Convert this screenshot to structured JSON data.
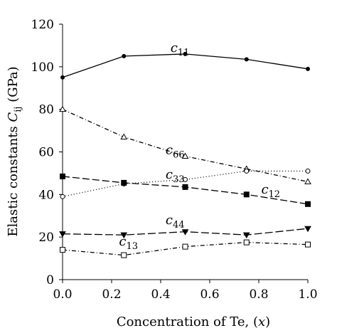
{
  "chart_data": {
    "type": "line",
    "title": "",
    "xlabel_prefix": "Concentration of Te, (",
    "xlabel_var": "x",
    "xlabel_suffix": ")",
    "ylabel_prefix": "Elastic constants ",
    "ylabel_var": "C",
    "ylabel_sub": "ij",
    "ylabel_suffix": " (GPa)",
    "xlim": [
      0.0,
      1.0
    ],
    "ylim": [
      0,
      120
    ],
    "x_ticks": [
      "0.0",
      "0.2",
      "0.4",
      "0.6",
      "0.8",
      "1.0"
    ],
    "y_ticks": [
      "0",
      "20",
      "40",
      "60",
      "80",
      "100",
      "120"
    ],
    "x_tick_values": [
      0.0,
      0.2,
      0.4,
      0.6,
      0.8,
      1.0
    ],
    "y_tick_values": [
      0,
      20,
      40,
      60,
      80,
      100,
      120
    ],
    "grid": false,
    "x": [
      0.0,
      0.25,
      0.5,
      0.75,
      1.0
    ],
    "series": [
      {
        "name": "c11",
        "label_main": "c",
        "label_sub": "11",
        "label_at": [
          0.44,
          107
        ],
        "values": [
          95,
          105,
          106,
          103.5,
          99
        ],
        "dash": "none",
        "marker": "dot"
      },
      {
        "name": "c66",
        "label_main": "c",
        "label_sub": "66",
        "label_at": [
          0.42,
          59
        ],
        "values": [
          80,
          67,
          58,
          52,
          46
        ],
        "dash": "6,3,1,3",
        "marker": "triangle-open"
      },
      {
        "name": "c33",
        "label_main": "c",
        "label_sub": "33",
        "label_at": [
          0.42,
          47.5
        ],
        "values": [
          39,
          45,
          47,
          51,
          51
        ],
        "dash": "1,3",
        "marker": "circle-open"
      },
      {
        "name": "c12",
        "label_main": "c",
        "label_sub": "12",
        "label_at": [
          0.81,
          40.5
        ],
        "values": [
          48.5,
          45.5,
          43.5,
          40,
          35.5
        ],
        "dash": "10,4",
        "marker": "square"
      },
      {
        "name": "c44",
        "label_main": "c",
        "label_sub": "44",
        "label_at": [
          0.42,
          26
        ],
        "values": [
          21.5,
          21,
          22.5,
          21,
          24
        ],
        "dash": "11,4",
        "marker": "triangle-down"
      },
      {
        "name": "c13",
        "label_main": "c",
        "label_sub": "13",
        "label_at": [
          0.23,
          16
        ],
        "values": [
          14,
          11.5,
          15.5,
          17.5,
          16.5
        ],
        "dash": "6,3,1,3",
        "marker": "square-open"
      }
    ]
  }
}
